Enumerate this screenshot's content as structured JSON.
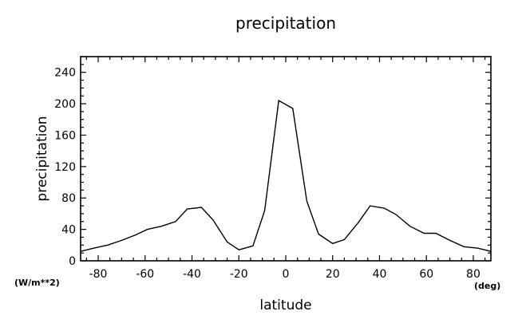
{
  "chart_data": {
    "type": "line",
    "title": "precipitation",
    "xlabel": "latitude",
    "ylabel": "precipitation",
    "x_unit": "(deg)",
    "y_unit": "(W/m**2)",
    "xlim": [
      -87.5,
      87.5
    ],
    "ylim": [
      0,
      260
    ],
    "xticks": [
      -80,
      -60,
      -40,
      -20,
      0,
      20,
      40,
      60,
      80
    ],
    "yticks": [
      0,
      40,
      80,
      120,
      160,
      200,
      240
    ],
    "grid": false,
    "series": [
      {
        "x": [
          -87.5,
          -82,
          -76,
          -70,
          -64,
          -59,
          -53,
          -47,
          -42,
          -36,
          -31,
          -25,
          -20,
          -14,
          -9,
          -3,
          3,
          9,
          14,
          20,
          25,
          31,
          36,
          42,
          47,
          53,
          59,
          64,
          70,
          76,
          82,
          87.5
        ],
        "y": [
          12,
          16,
          20,
          26,
          33,
          40,
          44,
          50,
          66,
          68,
          52,
          24,
          14,
          19,
          64,
          204,
          194,
          76,
          34,
          22,
          27,
          49,
          70,
          67,
          59,
          44,
          35,
          35,
          26,
          18,
          16,
          12
        ]
      }
    ]
  }
}
